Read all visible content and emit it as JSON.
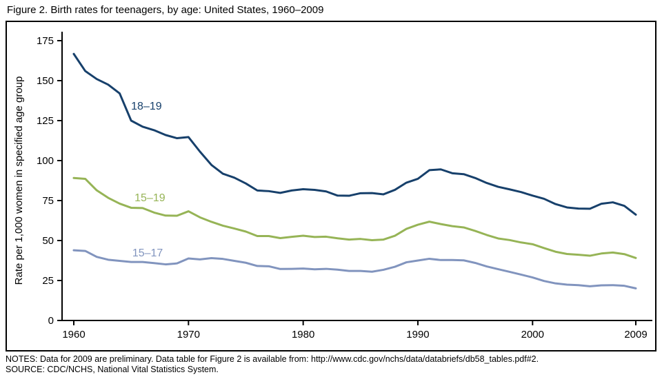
{
  "title": "Figure 2. Birth rates for teenagers, by age: United States, 1960–2009",
  "notes": {
    "line1": "NOTES: Data for 2009 are preliminary. Data table for Figure 2 is available from: http://www.cdc.gov/nchs/data/databriefs/db58_tables.pdf#2.",
    "line2": "SOURCE: CDC/NCHS, National Vital Statistics System."
  },
  "colors": {
    "axis": "#000000",
    "series_18_19": "#17406b",
    "series_15_19": "#96b456",
    "series_15_17": "#8194be"
  },
  "chart_data": {
    "type": "line",
    "title": "Figure 2. Birth rates for teenagers, by age: United States, 1960–2009",
    "xlabel": "",
    "ylabel": "Rate per 1,000 women in specified age group",
    "ylim": [
      0,
      175
    ],
    "yticks": [
      0,
      25,
      50,
      75,
      100,
      125,
      150,
      175
    ],
    "xticks": [
      1960,
      1970,
      1980,
      1990,
      2000,
      2009
    ],
    "grid": false,
    "legend_position": "inline",
    "x": [
      1960,
      1961,
      1962,
      1963,
      1964,
      1965,
      1966,
      1967,
      1968,
      1969,
      1970,
      1971,
      1972,
      1973,
      1974,
      1975,
      1976,
      1977,
      1978,
      1979,
      1980,
      1981,
      1982,
      1983,
      1984,
      1985,
      1986,
      1987,
      1988,
      1989,
      1990,
      1991,
      1992,
      1993,
      1994,
      1995,
      1996,
      1997,
      1998,
      1999,
      2000,
      2001,
      2002,
      2003,
      2004,
      2005,
      2006,
      2007,
      2008,
      2009
    ],
    "series": [
      {
        "name": "18–19",
        "color": "#17406b",
        "label_pos": {
          "year": 1965.0,
          "value": 132
        },
        "values": [
          166.7,
          156.0,
          151.0,
          147.5,
          142.0,
          125.0,
          121.2,
          119.0,
          116.0,
          114.0,
          114.7,
          105.6,
          97.3,
          91.8,
          89.3,
          85.7,
          81.3,
          80.9,
          79.8,
          81.3,
          82.1,
          81.7,
          80.7,
          78.1,
          78.0,
          79.6,
          79.7,
          78.9,
          81.7,
          86.2,
          88.6,
          94.0,
          94.5,
          92.1,
          91.5,
          89.1,
          86.0,
          83.6,
          82.0,
          80.3,
          78.1,
          76.1,
          72.8,
          70.7,
          70.0,
          69.9,
          73.0,
          73.9,
          71.7,
          66.2
        ]
      },
      {
        "name": "15–19",
        "color": "#96b456",
        "label_pos": {
          "year": 1965.3,
          "value": 74.5
        },
        "values": [
          89.1,
          88.6,
          81.4,
          76.7,
          73.1,
          70.5,
          70.3,
          67.5,
          65.6,
          65.5,
          68.3,
          64.5,
          61.7,
          59.3,
          57.5,
          55.6,
          52.8,
          52.8,
          51.5,
          52.3,
          53.0,
          52.2,
          52.4,
          51.4,
          50.6,
          51.0,
          50.2,
          50.6,
          53.0,
          57.3,
          59.9,
          61.8,
          60.3,
          59.0,
          58.2,
          56.0,
          53.5,
          51.3,
          50.3,
          48.8,
          47.7,
          45.3,
          43.0,
          41.6,
          41.1,
          40.5,
          41.9,
          42.5,
          41.5,
          39.1
        ]
      },
      {
        "name": "15–17",
        "color": "#8194be",
        "label_pos": {
          "year": 1965.1,
          "value": 40.0
        },
        "values": [
          43.9,
          43.5,
          39.8,
          38.0,
          37.3,
          36.6,
          36.6,
          35.9,
          35.1,
          35.7,
          38.8,
          38.2,
          39.0,
          38.5,
          37.3,
          36.1,
          34.1,
          33.9,
          32.2,
          32.3,
          32.5,
          32.0,
          32.3,
          31.8,
          31.0,
          31.0,
          30.5,
          31.7,
          33.6,
          36.4,
          37.5,
          38.6,
          37.8,
          37.8,
          37.6,
          36.0,
          33.8,
          32.1,
          30.4,
          28.7,
          26.9,
          24.7,
          23.2,
          22.4,
          22.1,
          21.4,
          22.0,
          22.1,
          21.7,
          20.1
        ]
      }
    ]
  }
}
